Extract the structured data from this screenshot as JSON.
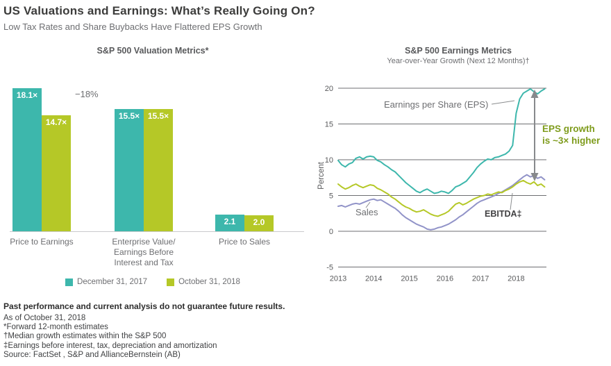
{
  "header": {
    "title": "US Valuations and Earnings: What’s Really Going On?",
    "subtitle": "Low Tax Rates and Share Buybacks Have Flattered EPS Growth"
  },
  "colors": {
    "teal": "#3db7ac",
    "green": "#b5c827",
    "purple": "#9193c8",
    "gray_text": "#6d6e71",
    "dark_text": "#3c3c3b",
    "annotation_green": "#7f9c1d",
    "arrow_gray": "#87898c"
  },
  "chart_data": [
    {
      "type": "bar",
      "title": "S&P 500 Valuation Metrics*",
      "categories": [
        "Price to Earnings",
        "Enterprise Value/\nEarnings Before\nInterest and Tax",
        "Price to Sales"
      ],
      "series": [
        {
          "name": "December 31, 2017",
          "color_key": "teal",
          "values": [
            18.1,
            15.5,
            2.1
          ],
          "value_labels": [
            "18.1×",
            "15.5×",
            "2.1"
          ]
        },
        {
          "name": "October 31, 2018",
          "color_key": "green",
          "values": [
            14.7,
            15.5,
            2.0
          ],
          "value_labels": [
            "14.7×",
            "15.5×",
            "2.0"
          ]
        }
      ],
      "annotation": "−18%",
      "ylim": [
        0,
        18.1
      ]
    },
    {
      "type": "line",
      "title": "S&P 500 Earnings Metrics",
      "subtitle": "Year-over-Year Growth (Next 12 Months)†",
      "ylabel": "Percent",
      "ylim": [
        -5,
        20
      ],
      "yticks": [
        20,
        15,
        10,
        5,
        0,
        -5
      ],
      "xticks": [
        2013,
        2014,
        2015,
        2016,
        2017,
        2018
      ],
      "xlim": [
        2013,
        2018.85
      ],
      "grid": true,
      "series": [
        {
          "key": "sales",
          "name": "Sales",
          "color_key": "purple",
          "x_start": 2013.0,
          "x_step": 0.1,
          "values": [
            3.5,
            3.6,
            3.4,
            3.6,
            3.8,
            3.9,
            3.8,
            4.0,
            4.2,
            4.4,
            4.5,
            4.3,
            4.4,
            4.1,
            3.8,
            3.5,
            3.2,
            2.8,
            2.3,
            1.9,
            1.6,
            1.3,
            1.0,
            0.8,
            0.6,
            0.3,
            0.2,
            0.3,
            0.5,
            0.6,
            0.8,
            1.0,
            1.3,
            1.6,
            2.0,
            2.3,
            2.7,
            3.1,
            3.5,
            3.9,
            4.2,
            4.4,
            4.6,
            4.8,
            5.0,
            5.3,
            5.5,
            5.8,
            6.1,
            6.4,
            6.8,
            7.2,
            7.6,
            7.9,
            7.6,
            7.8,
            7.4,
            7.6,
            7.2
          ]
        },
        {
          "key": "ebitda",
          "name": "EBITDA",
          "color_key": "green",
          "x_start": 2013.0,
          "x_step": 0.1,
          "values": [
            6.6,
            6.2,
            5.9,
            6.1,
            6.4,
            6.6,
            6.3,
            6.1,
            6.3,
            6.5,
            6.4,
            6.0,
            5.8,
            5.5,
            5.2,
            4.8,
            4.5,
            4.1,
            3.7,
            3.4,
            3.2,
            2.9,
            2.7,
            2.8,
            3.0,
            2.7,
            2.4,
            2.2,
            2.1,
            2.3,
            2.5,
            2.8,
            3.3,
            3.8,
            4.0,
            3.7,
            3.9,
            4.2,
            4.5,
            4.7,
            4.9,
            5.0,
            5.2,
            5.1,
            5.3,
            5.5,
            5.4,
            5.7,
            5.9,
            6.2,
            6.6,
            6.9,
            7.1,
            6.8,
            6.6,
            6.9,
            6.4,
            6.6,
            6.2
          ]
        },
        {
          "key": "eps",
          "name": "Earnings per Share (EPS)",
          "color_key": "teal",
          "x_start": 2013.0,
          "x_step": 0.1,
          "values": [
            9.9,
            9.3,
            9.0,
            9.4,
            9.6,
            10.2,
            10.4,
            10.1,
            10.4,
            10.5,
            10.4,
            9.9,
            9.7,
            9.3,
            9.0,
            8.6,
            8.3,
            7.8,
            7.3,
            6.8,
            6.4,
            6.0,
            5.6,
            5.4,
            5.7,
            5.9,
            5.6,
            5.3,
            5.4,
            5.6,
            5.5,
            5.3,
            5.7,
            6.2,
            6.4,
            6.7,
            7.0,
            7.6,
            8.2,
            8.9,
            9.4,
            9.8,
            10.1,
            10.0,
            10.3,
            10.4,
            10.6,
            10.8,
            11.2,
            12.0,
            16.5,
            18.5,
            19.3,
            19.6,
            19.9,
            19.5,
            19.2,
            19.6,
            19.9
          ]
        }
      ],
      "annotations": {
        "eps_label": "Earnings per Share (EPS)",
        "sales_label": "Sales",
        "ebitda_label": "EBITDA‡",
        "arrow_label": "EPS growth\nis ~3× higher"
      }
    }
  ],
  "legend": [
    {
      "label": "December 31, 2017",
      "color_key": "teal"
    },
    {
      "label": "October 31, 2018",
      "color_key": "green"
    }
  ],
  "footer": {
    "disclaimer": "Past performance and current analysis do not guarantee future results.",
    "lines": [
      "As of October 31, 2018",
      "*Forward 12-month estimates",
      "†Median growth estimates within the S&P 500",
      "‡Earnings before interest, tax, depreciation and amortization",
      "Source: FactSet , S&P and AllianceBernstein (AB)"
    ]
  }
}
